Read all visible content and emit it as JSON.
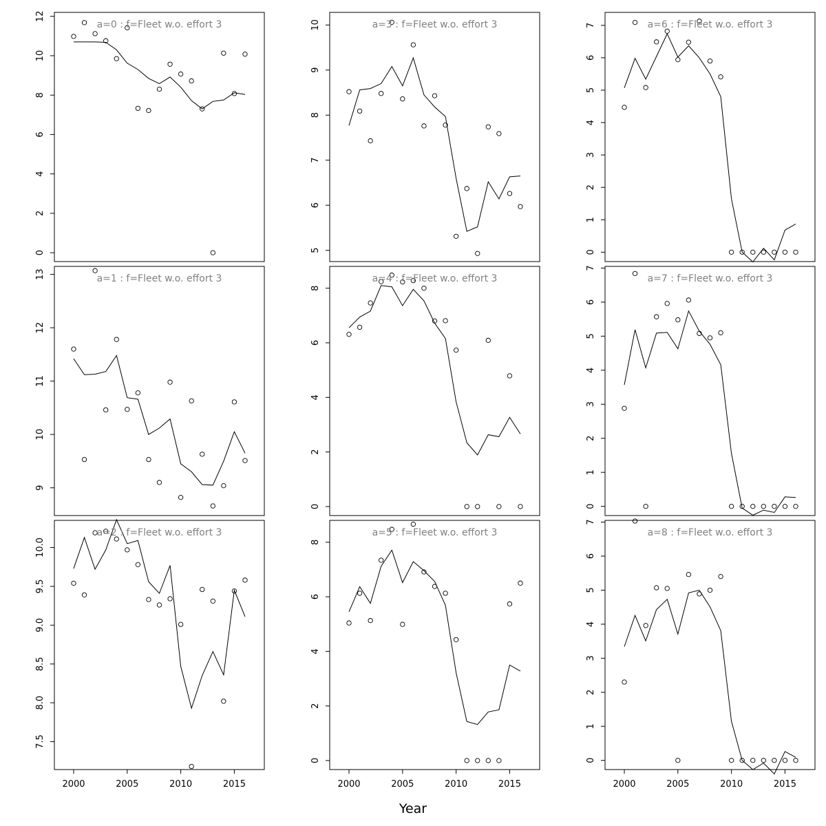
{
  "xlabel": "Year",
  "chart_data": [
    {
      "type": "scatter",
      "title": "a=0  :  f=Fleet w.o. effort 3",
      "x": [
        2000,
        2001,
        2002,
        2003,
        2004,
        2005,
        2006,
        2007,
        2008,
        2009,
        2010,
        2011,
        2012,
        2013,
        2014,
        2015,
        2016
      ],
      "xlim": [
        1998.2,
        2017.8
      ],
      "xticks": [
        2000,
        2005,
        2010,
        2015
      ],
      "ylim": [
        -0.45,
        12.2
      ],
      "yticks": [
        0,
        2,
        4,
        6,
        8,
        10,
        12
      ],
      "observed": [
        10.98,
        11.68,
        11.12,
        10.76,
        9.85,
        11.42,
        7.33,
        7.22,
        8.3,
        9.57,
        9.07,
        8.72,
        7.3,
        0.0,
        10.13,
        8.08,
        10.08
      ],
      "fitted": [
        10.7,
        10.7,
        10.7,
        10.68,
        10.3,
        9.62,
        9.3,
        8.85,
        8.58,
        8.92,
        8.4,
        7.72,
        7.3,
        7.68,
        7.75,
        8.12,
        8.03
      ]
    },
    {
      "type": "scatter",
      "title": "a=1  :  f=Fleet w.o. effort 3",
      "x": [
        2000,
        2001,
        2002,
        2003,
        2004,
        2005,
        2006,
        2007,
        2008,
        2009,
        2010,
        2011,
        2012,
        2013,
        2014,
        2015,
        2016
      ],
      "xlim": [
        1998.2,
        2017.8
      ],
      "xticks": [
        2000,
        2005,
        2010,
        2015
      ],
      "ylim": [
        8.48,
        13.15
      ],
      "yticks": [
        9,
        10,
        11,
        12,
        13
      ],
      "observed": [
        11.6,
        9.53,
        13.07,
        10.46,
        11.78,
        10.47,
        10.78,
        9.53,
        9.1,
        10.98,
        8.82,
        10.63,
        9.63,
        8.66,
        9.04,
        10.61,
        9.51
      ],
      "fitted": [
        11.42,
        11.12,
        11.13,
        11.18,
        11.48,
        10.69,
        10.66,
        10.0,
        10.12,
        10.29,
        9.45,
        9.3,
        9.06,
        9.05,
        9.5,
        10.05,
        9.65
      ]
    },
    {
      "type": "scatter",
      "title": "a=2  :  f=Fleet w.o. effort 3",
      "x": [
        2000,
        2001,
        2002,
        2003,
        2004,
        2005,
        2006,
        2007,
        2008,
        2009,
        2010,
        2011,
        2012,
        2013,
        2014,
        2015,
        2016
      ],
      "xlim": [
        1998.2,
        2017.8
      ],
      "xticks": [
        2000,
        2005,
        2010,
        2015
      ],
      "xticklabels": [
        "2000",
        "2005",
        "2010",
        "2015"
      ],
      "ylim": [
        7.14,
        10.35
      ],
      "yticks": [
        7.5,
        8.0,
        8.5,
        9.0,
        9.5,
        10.0
      ],
      "yticklabels": [
        "7.5",
        "8.0",
        "8.5",
        "9.0",
        "9.5",
        "10.0"
      ],
      "observed": [
        9.54,
        9.39,
        10.19,
        10.21,
        10.11,
        9.97,
        9.78,
        9.33,
        9.26,
        9.34,
        9.01,
        7.18,
        9.46,
        9.31,
        8.02,
        9.44,
        9.58
      ],
      "fitted": [
        9.73,
        10.13,
        9.72,
        9.97,
        10.36,
        10.05,
        10.09,
        9.56,
        9.41,
        9.77,
        8.47,
        7.93,
        8.35,
        8.66,
        8.36,
        9.45,
        9.11
      ]
    },
    {
      "type": "scatter",
      "title": "a=3  :  f=Fleet w.o. effort 3",
      "x": [
        2000,
        2001,
        2002,
        2003,
        2004,
        2005,
        2006,
        2007,
        2008,
        2009,
        2010,
        2011,
        2012,
        2013,
        2014,
        2015,
        2016
      ],
      "xlim": [
        1998.2,
        2017.8
      ],
      "xticks": [
        2000,
        2005,
        2010,
        2015
      ],
      "ylim": [
        4.75,
        10.28
      ],
      "yticks": [
        5,
        6,
        7,
        8,
        9,
        10
      ],
      "observed": [
        8.52,
        8.09,
        7.43,
        8.48,
        10.06,
        8.36,
        9.56,
        7.76,
        8.43,
        7.78,
        5.31,
        6.37,
        4.93,
        7.74,
        7.59,
        6.26,
        5.97
      ],
      "fitted": [
        7.77,
        8.56,
        8.59,
        8.7,
        9.08,
        8.65,
        9.27,
        8.45,
        8.18,
        7.97,
        6.6,
        5.42,
        5.52,
        6.52,
        6.14,
        6.63,
        6.65
      ]
    },
    {
      "type": "scatter",
      "title": "a=4  :  f=Fleet w.o. effort 3",
      "x": [
        2000,
        2001,
        2002,
        2003,
        2004,
        2005,
        2006,
        2007,
        2008,
        2009,
        2010,
        2011,
        2012,
        2013,
        2014,
        2015,
        2016
      ],
      "xlim": [
        1998.2,
        2017.8
      ],
      "xticks": [
        2000,
        2005,
        2010,
        2015
      ],
      "ylim": [
        -0.33,
        8.8
      ],
      "yticks": [
        0,
        2,
        4,
        6,
        8
      ],
      "observed": [
        6.31,
        6.57,
        7.46,
        8.24,
        8.48,
        8.23,
        8.28,
        8.0,
        6.8,
        6.81,
        5.73,
        0.0,
        0.0,
        6.09,
        0.0,
        4.79,
        0.0
      ],
      "fitted": [
        6.55,
        6.94,
        7.16,
        8.1,
        8.05,
        7.36,
        7.96,
        7.54,
        6.72,
        6.16,
        3.84,
        2.34,
        1.89,
        2.63,
        2.56,
        3.27,
        2.66
      ]
    },
    {
      "type": "scatter",
      "title": "a=5  :  f=Fleet w.o. effort 3",
      "x": [
        2000,
        2001,
        2002,
        2003,
        2004,
        2005,
        2006,
        2007,
        2008,
        2009,
        2010,
        2011,
        2012,
        2013,
        2014,
        2015,
        2016
      ],
      "xlim": [
        1998.2,
        2017.8
      ],
      "xticks": [
        2000,
        2005,
        2010,
        2015
      ],
      "ylim": [
        -0.33,
        8.8
      ],
      "yticks": [
        0,
        2,
        4,
        6,
        8
      ],
      "observed": [
        5.04,
        6.13,
        5.13,
        7.34,
        8.47,
        4.99,
        8.66,
        6.91,
        6.38,
        6.13,
        4.43,
        0.0,
        0.0,
        0.0,
        0.0,
        5.74,
        6.5
      ],
      "fitted": [
        5.45,
        6.37,
        5.76,
        7.12,
        7.71,
        6.52,
        7.29,
        6.96,
        6.56,
        5.69,
        3.22,
        1.43,
        1.32,
        1.78,
        1.86,
        3.5,
        3.28
      ]
    },
    {
      "type": "scatter",
      "title": "a=6  :  f=Fleet w.o. effort 3",
      "x": [
        2000,
        2001,
        2002,
        2003,
        2004,
        2005,
        2006,
        2007,
        2008,
        2009,
        2010,
        2011,
        2012,
        2013,
        2014,
        2015,
        2016
      ],
      "xlim": [
        1998.2,
        2017.8
      ],
      "xticks": [
        2000,
        2005,
        2010,
        2015
      ],
      "ylim": [
        -0.29,
        7.4
      ],
      "yticks": [
        0,
        1,
        2,
        3,
        4,
        5,
        6,
        7
      ],
      "observed": [
        4.47,
        7.09,
        5.08,
        6.49,
        6.82,
        5.94,
        6.48,
        7.13,
        5.9,
        5.41,
        0.0,
        0.0,
        0.0,
        0.0,
        0.0,
        0.0,
        0.0
      ],
      "fitted": [
        5.07,
        5.98,
        5.34,
        6.04,
        6.74,
        6.02,
        6.37,
        6.0,
        5.5,
        4.8,
        1.65,
        0.0,
        -0.3,
        0.12,
        -0.24,
        0.68,
        0.87
      ]
    },
    {
      "type": "scatter",
      "title": "a=7  :  f=Fleet w.o. effort 3",
      "x": [
        2000,
        2001,
        2002,
        2003,
        2004,
        2005,
        2006,
        2007,
        2008,
        2009,
        2010,
        2011,
        2012,
        2013,
        2014,
        2015,
        2016
      ],
      "xlim": [
        1998.2,
        2017.8
      ],
      "xticks": [
        2000,
        2005,
        2010,
        2015
      ],
      "ylim": [
        -0.27,
        7.05
      ],
      "yticks": [
        0,
        1,
        2,
        3,
        4,
        5,
        6,
        7
      ],
      "observed": [
        2.88,
        6.84,
        0.0,
        5.57,
        5.96,
        5.48,
        6.06,
        5.08,
        4.95,
        5.1,
        0.0,
        0.0,
        0.0,
        0.0,
        0.0,
        0.0,
        0.0
      ],
      "fitted": [
        3.57,
        5.19,
        4.07,
        5.09,
        5.11,
        4.63,
        5.74,
        5.15,
        4.76,
        4.16,
        1.56,
        -0.05,
        -0.26,
        -0.11,
        -0.18,
        0.28,
        0.26
      ]
    },
    {
      "type": "scatter",
      "title": "a=8  :  f=Fleet w.o. effort 3",
      "x": [
        2000,
        2001,
        2002,
        2003,
        2004,
        2005,
        2006,
        2007,
        2008,
        2009,
        2010,
        2011,
        2012,
        2013,
        2014,
        2015,
        2016
      ],
      "xlim": [
        1998.2,
        2017.8
      ],
      "xticks": [
        2000,
        2005,
        2010,
        2015
      ],
      "ylim": [
        -0.27,
        7.05
      ],
      "yticks": [
        0,
        1,
        2,
        3,
        4,
        5,
        6,
        7
      ],
      "observed": [
        2.3,
        7.03,
        3.96,
        5.07,
        5.05,
        0.0,
        5.46,
        4.89,
        5.0,
        5.4,
        0.0,
        0.0,
        0.0,
        0.0,
        0.0,
        0.0,
        0.0
      ],
      "fitted": [
        3.34,
        4.26,
        3.51,
        4.43,
        4.73,
        3.71,
        4.92,
        5.0,
        4.51,
        3.81,
        1.15,
        0.0,
        -0.27,
        -0.08,
        -0.4,
        0.26,
        0.09
      ]
    }
  ]
}
